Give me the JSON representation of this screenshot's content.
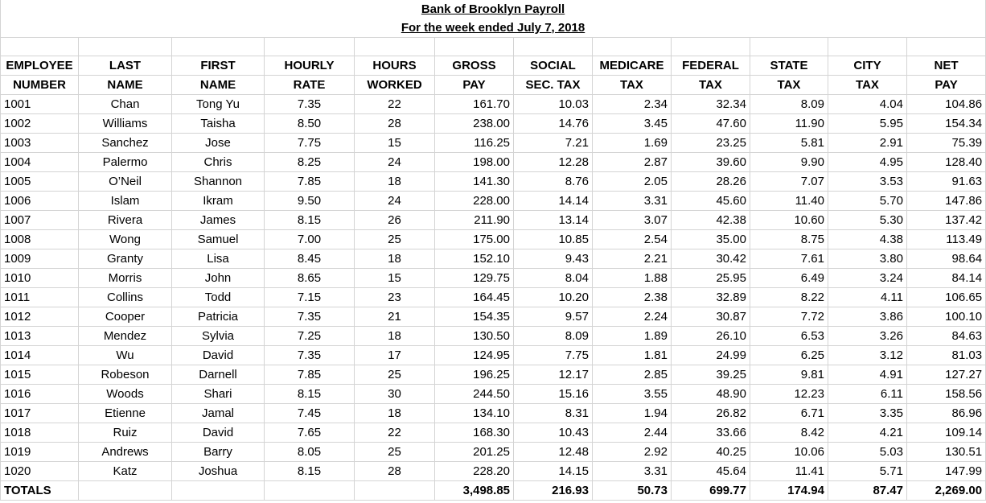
{
  "title": "Bank of Brooklyn Payroll",
  "subtitle": "For the week  ended July  7, 2018",
  "header_row1": [
    "EMPLOYEE",
    "LAST",
    "FIRST",
    "HOURLY",
    "HOURS",
    "GROSS",
    "SOCIAL",
    "MEDICARE",
    "FEDERAL",
    "STATE",
    "CITY",
    "NET"
  ],
  "header_row2": [
    "NUMBER",
    "NAME",
    "NAME",
    "RATE",
    "WORKED",
    "PAY",
    "SEC. TAX",
    "TAX",
    "TAX",
    "TAX",
    "TAX",
    "PAY"
  ],
  "rows": [
    [
      "1001",
      "Chan",
      "Tong Yu",
      "7.35",
      "22",
      "161.70",
      "10.03",
      "2.34",
      "32.34",
      "8.09",
      "4.04",
      "104.86"
    ],
    [
      "1002",
      "Williams",
      "Taisha",
      "8.50",
      "28",
      "238.00",
      "14.76",
      "3.45",
      "47.60",
      "11.90",
      "5.95",
      "154.34"
    ],
    [
      "1003",
      "Sanchez",
      "Jose",
      "7.75",
      "15",
      "116.25",
      "7.21",
      "1.69",
      "23.25",
      "5.81",
      "2.91",
      "75.39"
    ],
    [
      "1004",
      "Palermo",
      "Chris",
      "8.25",
      "24",
      "198.00",
      "12.28",
      "2.87",
      "39.60",
      "9.90",
      "4.95",
      "128.40"
    ],
    [
      "1005",
      "O’Neil",
      "Shannon",
      "7.85",
      "18",
      "141.30",
      "8.76",
      "2.05",
      "28.26",
      "7.07",
      "3.53",
      "91.63"
    ],
    [
      "1006",
      "Islam",
      "Ikram",
      "9.50",
      "24",
      "228.00",
      "14.14",
      "3.31",
      "45.60",
      "11.40",
      "5.70",
      "147.86"
    ],
    [
      "1007",
      "Rivera",
      "James",
      "8.15",
      "26",
      "211.90",
      "13.14",
      "3.07",
      "42.38",
      "10.60",
      "5.30",
      "137.42"
    ],
    [
      "1008",
      "Wong",
      "Samuel",
      "7.00",
      "25",
      "175.00",
      "10.85",
      "2.54",
      "35.00",
      "8.75",
      "4.38",
      "113.49"
    ],
    [
      "1009",
      "Granty",
      "Lisa",
      "8.45",
      "18",
      "152.10",
      "9.43",
      "2.21",
      "30.42",
      "7.61",
      "3.80",
      "98.64"
    ],
    [
      "1010",
      "Morris",
      "John",
      "8.65",
      "15",
      "129.75",
      "8.04",
      "1.88",
      "25.95",
      "6.49",
      "3.24",
      "84.14"
    ],
    [
      "1011",
      "Collins",
      "Todd",
      "7.15",
      "23",
      "164.45",
      "10.20",
      "2.38",
      "32.89",
      "8.22",
      "4.11",
      "106.65"
    ],
    [
      "1012",
      "Cooper",
      "Patricia",
      "7.35",
      "21",
      "154.35",
      "9.57",
      "2.24",
      "30.87",
      "7.72",
      "3.86",
      "100.10"
    ],
    [
      "1013",
      "Mendez",
      "Sylvia",
      "7.25",
      "18",
      "130.50",
      "8.09",
      "1.89",
      "26.10",
      "6.53",
      "3.26",
      "84.63"
    ],
    [
      "1014",
      "Wu",
      "David",
      "7.35",
      "17",
      "124.95",
      "7.75",
      "1.81",
      "24.99",
      "6.25",
      "3.12",
      "81.03"
    ],
    [
      "1015",
      "Robeson",
      "Darnell",
      "7.85",
      "25",
      "196.25",
      "12.17",
      "2.85",
      "39.25",
      "9.81",
      "4.91",
      "127.27"
    ],
    [
      "1016",
      "Woods",
      "Shari",
      "8.15",
      "30",
      "244.50",
      "15.16",
      "3.55",
      "48.90",
      "12.23",
      "6.11",
      "158.56"
    ],
    [
      "1017",
      "Etienne",
      "Jamal",
      "7.45",
      "18",
      "134.10",
      "8.31",
      "1.94",
      "26.82",
      "6.71",
      "3.35",
      "86.96"
    ],
    [
      "1018",
      "Ruiz",
      "David",
      "7.65",
      "22",
      "168.30",
      "10.43",
      "2.44",
      "33.66",
      "8.42",
      "4.21",
      "109.14"
    ],
    [
      "1019",
      "Andrews",
      "Barry",
      "8.05",
      "25",
      "201.25",
      "12.48",
      "2.92",
      "40.25",
      "10.06",
      "5.03",
      "130.51"
    ],
    [
      "1020",
      "Katz",
      "Joshua",
      "8.15",
      "28",
      "228.20",
      "14.15",
      "3.31",
      "45.64",
      "11.41",
      "5.71",
      "147.99"
    ]
  ],
  "totals": [
    "TOTALS",
    "",
    "",
    "",
    "",
    "3,498.85",
    "216.93",
    "50.73",
    "699.77",
    "174.94",
    "87.47",
    "2,269.00"
  ]
}
